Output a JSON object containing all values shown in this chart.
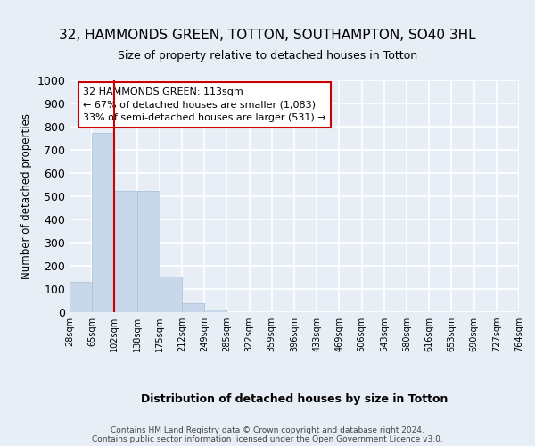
{
  "title": "32, HAMMONDS GREEN, TOTTON, SOUTHAMPTON, SO40 3HL",
  "subtitle": "Size of property relative to detached houses in Totton",
  "xlabel": "Distribution of detached houses by size in Totton",
  "ylabel": "Number of detached properties",
  "bin_labels": [
    "28sqm",
    "65sqm",
    "102sqm",
    "138sqm",
    "175sqm",
    "212sqm",
    "249sqm",
    "285sqm",
    "322sqm",
    "359sqm",
    "396sqm",
    "433sqm",
    "469sqm",
    "506sqm",
    "543sqm",
    "580sqm",
    "616sqm",
    "653sqm",
    "690sqm",
    "727sqm",
    "764sqm"
  ],
  "bar_values": [
    130,
    775,
    525,
    525,
    155,
    40,
    12,
    0,
    0,
    0,
    0,
    0,
    0,
    0,
    0,
    0,
    0,
    0,
    0,
    0
  ],
  "bar_color": "#c8d8ea",
  "bar_edgecolor": "#adc4d8",
  "vline_x": 2.0,
  "vline_color": "#cc0000",
  "annotation_text": "32 HAMMONDS GREEN: 113sqm\n← 67% of detached houses are smaller (1,083)\n33% of semi-detached houses are larger (531) →",
  "annotation_box_color": "#ffffff",
  "annotation_box_edgecolor": "#cc0000",
  "ylim": [
    0,
    1000
  ],
  "yticks": [
    0,
    100,
    200,
    300,
    400,
    500,
    600,
    700,
    800,
    900,
    1000
  ],
  "footer": "Contains HM Land Registry data © Crown copyright and database right 2024.\nContains public sector information licensed under the Open Government Licence v3.0.",
  "bg_color": "#e8eef5",
  "grid_color": "#ffffff"
}
